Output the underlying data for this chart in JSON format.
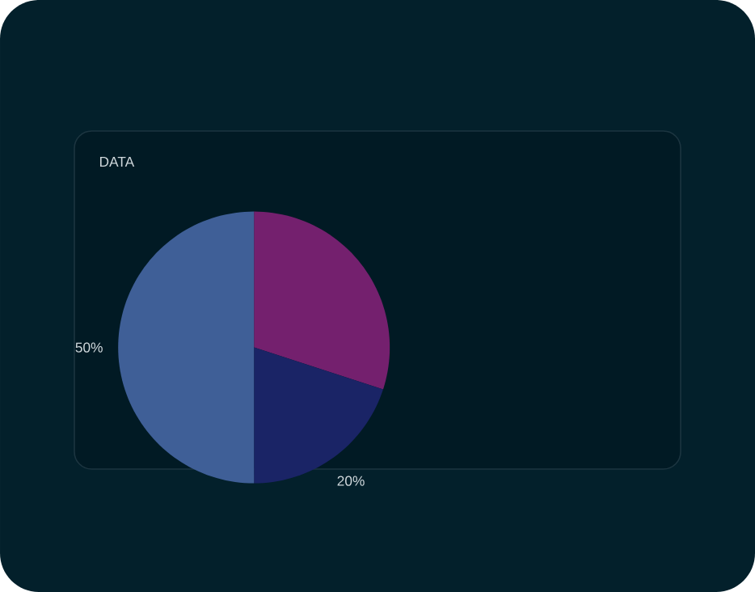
{
  "chart_data": {
    "type": "pie",
    "title": "DATA",
    "categories": [
      null,
      null,
      null
    ],
    "values": [
      30,
      20,
      50
    ],
    "colors": [
      "#74206e",
      "#1a2466",
      "#3f5f97"
    ],
    "value_labels": [
      null,
      "20%",
      "50%"
    ]
  }
}
